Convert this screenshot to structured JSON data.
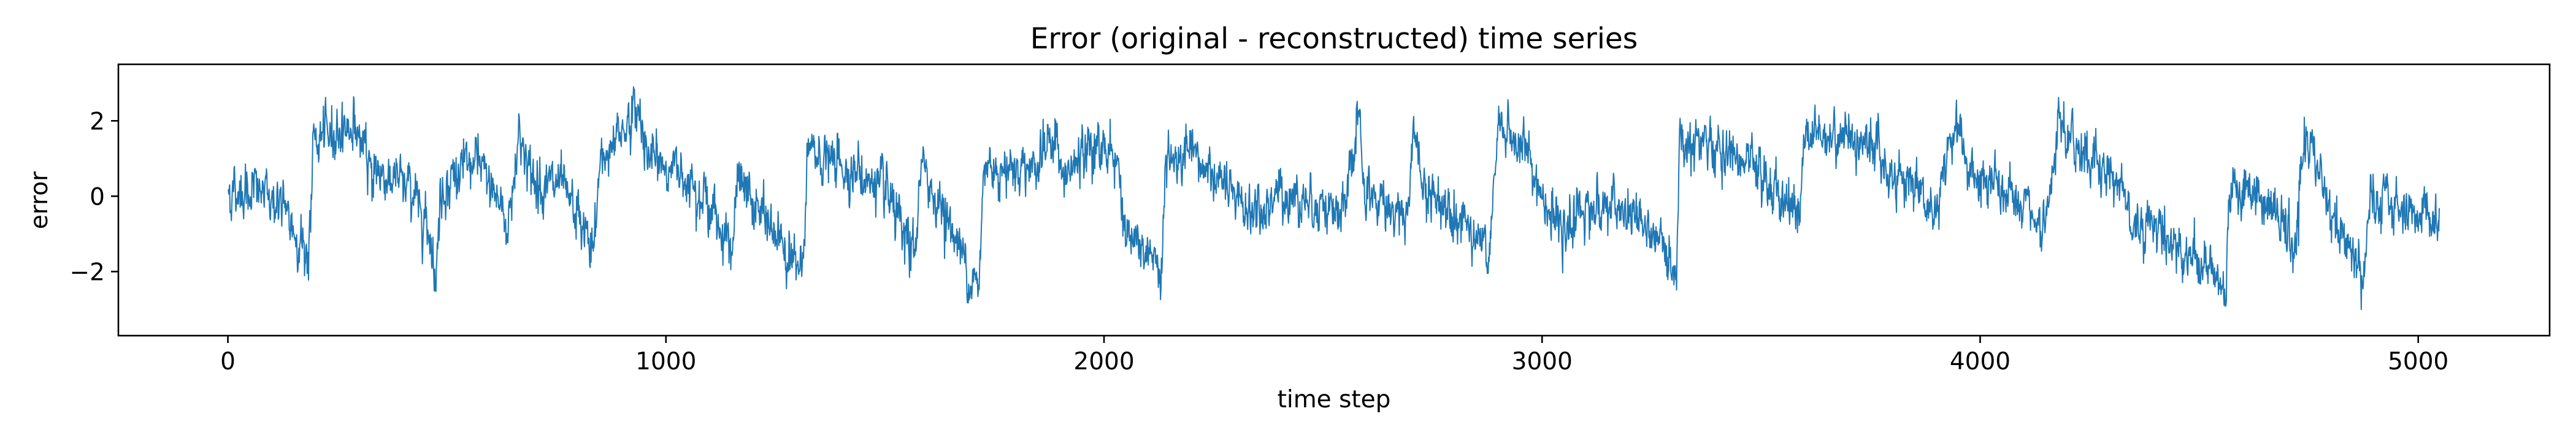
{
  "chart_data": {
    "type": "line",
    "title": "Error (original - reconstructed) time series",
    "xlabel": "time step",
    "ylabel": "error",
    "xlim": [
      -250,
      5300
    ],
    "ylim": [
      -3.7,
      3.5
    ],
    "xticks": [
      0,
      1000,
      2000,
      3000,
      4000,
      5000
    ],
    "yticks": [
      -2,
      0,
      2
    ],
    "ytick_labels": [
      "−2",
      "0",
      "2"
    ],
    "grid": false,
    "legend": "none",
    "series": [
      {
        "color": "#1f77b4",
        "n_points": 5050,
        "x_start": 0,
        "x_step": 1,
        "noise_std": 0.35,
        "mean_trend": [
          [
            0,
            0.1
          ],
          [
            60,
            0.2
          ],
          [
            120,
            -0.2
          ],
          [
            150,
            -0.9
          ],
          [
            185,
            -1.6
          ],
          [
            195,
            1.4
          ],
          [
            240,
            1.7
          ],
          [
            290,
            1.9
          ],
          [
            320,
            0.8
          ],
          [
            420,
            0.2
          ],
          [
            460,
            -0.8
          ],
          [
            475,
            -2.3
          ],
          [
            485,
            0.1
          ],
          [
            520,
            0.6
          ],
          [
            570,
            0.9
          ],
          [
            610,
            0.1
          ],
          [
            640,
            -0.8
          ],
          [
            665,
            1.8
          ],
          [
            690,
            0.5
          ],
          [
            760,
            0.2
          ],
          [
            800,
            -0.6
          ],
          [
            835,
            -1.5
          ],
          [
            850,
            0.9
          ],
          [
            900,
            1.8
          ],
          [
            940,
            2.3
          ],
          [
            960,
            1.0
          ],
          [
            1060,
            0.5
          ],
          [
            1110,
            -0.5
          ],
          [
            1150,
            -1.3
          ],
          [
            1165,
            0.4
          ],
          [
            1230,
            -0.7
          ],
          [
            1290,
            -1.6
          ],
          [
            1310,
            -2.3
          ],
          [
            1325,
            1.2
          ],
          [
            1400,
            0.8
          ],
          [
            1450,
            0.5
          ],
          [
            1500,
            0.1
          ],
          [
            1550,
            -1.3
          ],
          [
            1570,
            -1.5
          ],
          [
            1580,
            0.8
          ],
          [
            1650,
            -0.8
          ],
          [
            1700,
            -2.2
          ],
          [
            1715,
            -2.6
          ],
          [
            1725,
            0.8
          ],
          [
            1800,
            0.8
          ],
          [
            1850,
            0.9
          ],
          [
            1890,
            1.7
          ],
          [
            1905,
            0.3
          ],
          [
            1950,
            1.1
          ],
          [
            2010,
            1.4
          ],
          [
            2035,
            0.6
          ],
          [
            2050,
            -1.0
          ],
          [
            2110,
            -1.8
          ],
          [
            2130,
            -2.0
          ],
          [
            2140,
            0.8
          ],
          [
            2200,
            1.0
          ],
          [
            2260,
            0.5
          ],
          [
            2300,
            -0.2
          ],
          [
            2360,
            -0.5
          ],
          [
            2400,
            0.1
          ],
          [
            2500,
            -0.2
          ],
          [
            2550,
            -0.6
          ],
          [
            2565,
            1.1
          ],
          [
            2580,
            2.0
          ],
          [
            2595,
            0.0
          ],
          [
            2640,
            -0.2
          ],
          [
            2690,
            -0.5
          ],
          [
            2710,
            1.7
          ],
          [
            2730,
            0.1
          ],
          [
            2800,
            -0.3
          ],
          [
            2850,
            -1.0
          ],
          [
            2880,
            -1.6
          ],
          [
            2900,
            1.8
          ],
          [
            2960,
            1.3
          ],
          [
            3000,
            0.0
          ],
          [
            3050,
            -1.2
          ],
          [
            3080,
            -0.3
          ],
          [
            3150,
            -0.3
          ],
          [
            3220,
            -0.6
          ],
          [
            3280,
            -1.5
          ],
          [
            3305,
            -2.0
          ],
          [
            3315,
            1.6
          ],
          [
            3400,
            1.2
          ],
          [
            3450,
            1.0
          ],
          [
            3500,
            0.5
          ],
          [
            3560,
            -0.2
          ],
          [
            3590,
            -0.4
          ],
          [
            3600,
            1.7
          ],
          [
            3700,
            1.6
          ],
          [
            3760,
            1.4
          ],
          [
            3790,
            0.6
          ],
          [
            3850,
            0.4
          ],
          [
            3900,
            -0.5
          ],
          [
            3930,
            1.4
          ],
          [
            3955,
            2.0
          ],
          [
            3975,
            0.4
          ],
          [
            4050,
            0.2
          ],
          [
            4100,
            -0.4
          ],
          [
            4150,
            -1.0
          ],
          [
            4180,
            1.9
          ],
          [
            4200,
            1.5
          ],
          [
            4260,
            1.0
          ],
          [
            4330,
            0.2
          ],
          [
            4350,
            -0.8
          ],
          [
            4400,
            -0.7
          ],
          [
            4450,
            -1.4
          ],
          [
            4500,
            -1.6
          ],
          [
            4545,
            -2.3
          ],
          [
            4560,
            -2.5
          ],
          [
            4570,
            0.3
          ],
          [
            4620,
            0.1
          ],
          [
            4680,
            -0.5
          ],
          [
            4720,
            -1.5
          ],
          [
            4740,
            1.6
          ],
          [
            4770,
            0.8
          ],
          [
            4810,
            -0.8
          ],
          [
            4860,
            -1.6
          ],
          [
            4875,
            -2.3
          ],
          [
            4890,
            -0.2
          ],
          [
            4950,
            -0.3
          ],
          [
            5000,
            -0.4
          ],
          [
            5050,
            -0.6
          ]
        ]
      }
    ]
  }
}
